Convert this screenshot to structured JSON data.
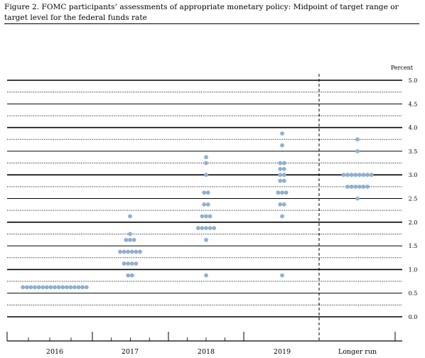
{
  "figure": {
    "title": "Figure 2. FOMC participants’ assessments of appropriate monetary policy: Midpoint of target range or target level for the federal funds rate"
  },
  "chart_data": {
    "type": "scatter",
    "subtype": "dot-plot",
    "unit_label": "Percent",
    "ylim": [
      0,
      5
    ],
    "y_ticks": [
      "0.0",
      "0.5",
      "1.0",
      "1.5",
      "2.0",
      "2.5",
      "3.0",
      "3.5",
      "4.0",
      "4.5",
      "5.0"
    ],
    "categories": [
      "2016",
      "2017",
      "2018",
      "2019",
      "Longer run"
    ],
    "grid": "solid lines at whole and half percents, dotted lines at quarter percents",
    "dot_color": "#8fb0d2",
    "separator": "dashed vertical line before Longer run",
    "series": [
      {
        "category": "2016",
        "dots": [
          {
            "y": 0.625,
            "count": 17
          }
        ]
      },
      {
        "category": "2017",
        "dots": [
          {
            "y": 2.125,
            "count": 1
          },
          {
            "y": 1.75,
            "count": 1
          },
          {
            "y": 1.625,
            "count": 3
          },
          {
            "y": 1.375,
            "count": 6
          },
          {
            "y": 1.125,
            "count": 4
          },
          {
            "y": 0.875,
            "count": 2
          }
        ]
      },
      {
        "category": "2018",
        "dots": [
          {
            "y": 3.375,
            "count": 1
          },
          {
            "y": 3.25,
            "count": 1
          },
          {
            "y": 3.0,
            "count": 1
          },
          {
            "y": 2.625,
            "count": 2
          },
          {
            "y": 2.375,
            "count": 2
          },
          {
            "y": 2.125,
            "count": 3
          },
          {
            "y": 1.875,
            "count": 5
          },
          {
            "y": 1.625,
            "count": 1
          },
          {
            "y": 0.875,
            "count": 1
          }
        ]
      },
      {
        "category": "2019",
        "dots": [
          {
            "y": 3.875,
            "count": 1
          },
          {
            "y": 3.625,
            "count": 1
          },
          {
            "y": 3.25,
            "count": 2
          },
          {
            "y": 3.125,
            "count": 2
          },
          {
            "y": 3.0,
            "count": 2
          },
          {
            "y": 2.875,
            "count": 2
          },
          {
            "y": 2.625,
            "count": 3
          },
          {
            "y": 2.375,
            "count": 2
          },
          {
            "y": 2.125,
            "count": 1
          },
          {
            "y": 0.875,
            "count": 1
          }
        ]
      },
      {
        "category": "Longer run",
        "dots": [
          {
            "y": 3.75,
            "count": 1
          },
          {
            "y": 3.5,
            "count": 1
          },
          {
            "y": 3.0,
            "count": 8
          },
          {
            "y": 2.75,
            "count": 6
          },
          {
            "y": 2.5,
            "count": 1
          }
        ]
      }
    ]
  }
}
